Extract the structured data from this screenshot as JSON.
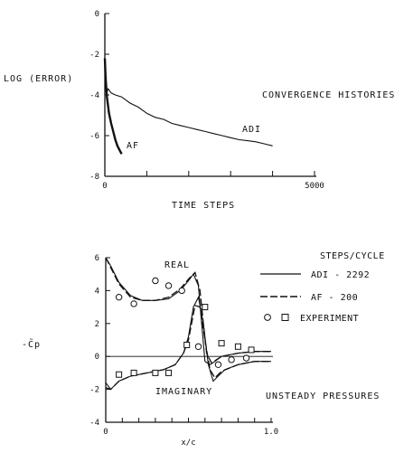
{
  "chart_data": [
    {
      "type": "line",
      "title": "CONVERGENCE HISTORIES",
      "xlabel": "TIME STEPS",
      "ylabel": "LOG (ERROR)",
      "xlim": [
        0,
        5000
      ],
      "ylim": [
        -8,
        0
      ],
      "x_tick_labels": [
        "0",
        "5000"
      ],
      "y_tick_labels": [
        "0",
        "-2",
        "-4",
        "-6",
        "-8"
      ],
      "series": [
        {
          "name": "ADI",
          "x": [
            0,
            40,
            80,
            150,
            250,
            400,
            600,
            800,
            1000,
            1200,
            1400,
            1600,
            1800,
            2000,
            2200,
            2400,
            2600,
            2800,
            3000,
            3200,
            3400,
            3600,
            3800,
            4000
          ],
          "y": [
            -2.8,
            -3.9,
            -3.7,
            -3.9,
            -4.0,
            -4.1,
            -4.4,
            -4.6,
            -4.9,
            -5.1,
            -5.2,
            -5.4,
            -5.5,
            -5.6,
            -5.7,
            -5.8,
            -5.9,
            -6.0,
            -6.1,
            -6.2,
            -6.25,
            -6.3,
            -6.4,
            -6.5
          ]
        },
        {
          "name": "AF",
          "x": [
            0,
            20,
            50,
            100,
            150,
            200,
            250,
            300,
            350,
            400
          ],
          "y": [
            -2.2,
            -3.2,
            -4.1,
            -4.9,
            -5.4,
            -5.8,
            -6.2,
            -6.5,
            -6.7,
            -6.9
          ]
        }
      ]
    },
    {
      "type": "line",
      "title": "UNSTEADY PRESSURES",
      "xlabel": "x/c",
      "ylabel": "-C̃p",
      "xlim": [
        0,
        1.0
      ],
      "ylim": [
        -4,
        6
      ],
      "x_tick_labels": [
        "0",
        "1.0"
      ],
      "y_tick_labels": [
        "6",
        "4",
        "2",
        "0",
        "-2",
        "-4"
      ],
      "legend_title": "STEPS/CYCLE",
      "legend": [
        "ADI - 2292",
        "AF - 200",
        "EXPERIMENT"
      ],
      "annotations": [
        "REAL",
        "IMAGINARY"
      ],
      "series": [
        {
          "name": "ADI - 2292",
          "part": "real",
          "x": [
            0,
            0.03,
            0.08,
            0.15,
            0.22,
            0.3,
            0.38,
            0.45,
            0.5,
            0.53,
            0.56,
            0.58,
            0.6,
            0.63,
            0.66,
            0.7,
            0.8,
            0.9,
            1.0
          ],
          "y": [
            6.0,
            5.5,
            4.5,
            3.7,
            3.4,
            3.4,
            3.5,
            4.0,
            4.6,
            5.0,
            4.3,
            2.0,
            -0.3,
            -0.5,
            -0.3,
            0.0,
            0.2,
            0.3,
            0.3
          ]
        },
        {
          "name": "ADI - 2292",
          "part": "imaginary",
          "x": [
            0,
            0.03,
            0.08,
            0.15,
            0.25,
            0.35,
            0.42,
            0.47,
            0.5,
            0.53,
            0.56,
            0.59,
            0.62,
            0.65,
            0.68,
            0.72,
            0.8,
            0.9,
            1.0
          ],
          "y": [
            -1.6,
            -2.0,
            -1.5,
            -1.2,
            -1.0,
            -0.8,
            -0.5,
            0.2,
            1.2,
            3.0,
            3.6,
            2.0,
            -0.5,
            -1.5,
            -1.2,
            -0.8,
            -0.5,
            -0.3,
            -0.3
          ]
        },
        {
          "name": "AF - 200",
          "part": "real",
          "x": [
            0,
            0.03,
            0.08,
            0.15,
            0.22,
            0.3,
            0.38,
            0.45,
            0.5,
            0.54,
            0.57,
            0.59,
            0.61,
            0.64,
            0.67,
            0.7,
            0.8,
            0.9,
            1.0
          ],
          "y": [
            6.0,
            5.4,
            4.4,
            3.6,
            3.4,
            3.4,
            3.6,
            4.1,
            4.7,
            5.1,
            4.0,
            2.0,
            0.2,
            -0.4,
            -0.2,
            0.0,
            0.2,
            0.3,
            0.3
          ]
        },
        {
          "name": "AF - 200",
          "part": "imaginary",
          "x": [
            0,
            0.03,
            0.08,
            0.15,
            0.25,
            0.35,
            0.42,
            0.47,
            0.5,
            0.54,
            0.57,
            0.6,
            0.63,
            0.66,
            0.7,
            0.8,
            0.9,
            1.0
          ],
          "y": [
            -1.9,
            -2.0,
            -1.5,
            -1.2,
            -1.0,
            -0.8,
            -0.5,
            0.2,
            1.0,
            3.1,
            3.0,
            1.0,
            -0.8,
            -1.3,
            -0.9,
            -0.5,
            -0.3,
            -0.3
          ]
        },
        {
          "name": "EXPERIMENT",
          "part": "real",
          "marker": "circle",
          "x": [
            0.08,
            0.17,
            0.3,
            0.38,
            0.46,
            0.56,
            0.68,
            0.76,
            0.85
          ],
          "y": [
            3.6,
            3.2,
            4.6,
            4.3,
            4.0,
            0.6,
            -0.5,
            -0.2,
            -0.1
          ]
        },
        {
          "name": "EXPERIMENT",
          "part": "imaginary",
          "marker": "square",
          "x": [
            0.08,
            0.17,
            0.3,
            0.38,
            0.49,
            0.6,
            0.7,
            0.8,
            0.88
          ],
          "y": [
            -1.1,
            -1.0,
            -1.0,
            -1.0,
            0.7,
            3.0,
            0.8,
            0.6,
            0.4
          ]
        }
      ]
    }
  ]
}
